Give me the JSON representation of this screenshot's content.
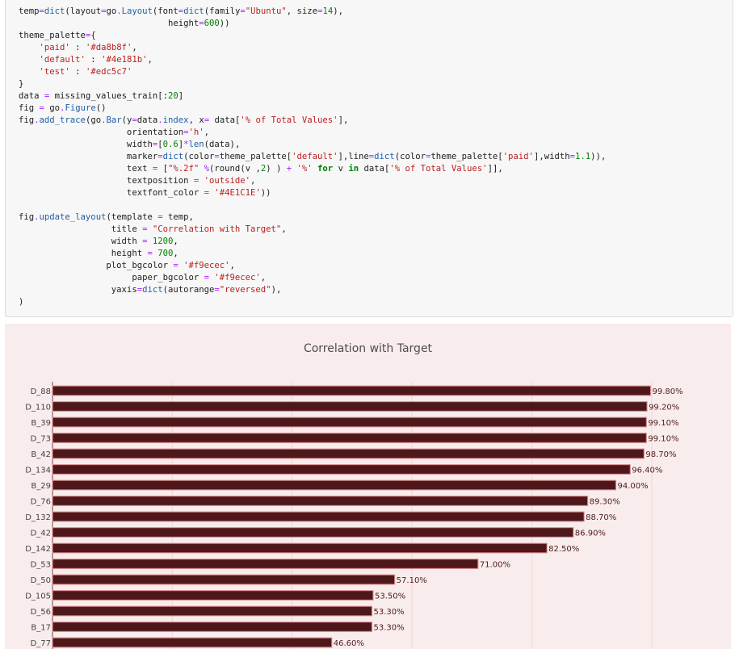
{
  "code_lines": [
    [
      [
        "t",
        "temp"
      ],
      [
        "o",
        "="
      ],
      [
        "f",
        "dict"
      ],
      [
        "t",
        "(layout"
      ],
      [
        "o",
        "="
      ],
      [
        "t",
        "go"
      ],
      [
        "o",
        "."
      ],
      [
        "f",
        "Layout"
      ],
      [
        "t",
        "(font"
      ],
      [
        "o",
        "="
      ],
      [
        "f",
        "dict"
      ],
      [
        "t",
        "(family"
      ],
      [
        "o",
        "="
      ],
      [
        "s",
        "\"Ubuntu\""
      ],
      [
        "t",
        ", size"
      ],
      [
        "o",
        "="
      ],
      [
        "n",
        "14"
      ],
      [
        "t",
        "),"
      ]
    ],
    [
      [
        "t",
        "                             height"
      ],
      [
        "o",
        "="
      ],
      [
        "n",
        "600"
      ],
      [
        "t",
        "))"
      ]
    ],
    [
      [
        "t",
        "theme_palette"
      ],
      [
        "o",
        "="
      ],
      [
        "t",
        "{"
      ]
    ],
    [
      [
        "t",
        "    "
      ],
      [
        "s",
        "'paid'"
      ],
      [
        "t",
        " : "
      ],
      [
        "s",
        "'#da8b8f'"
      ],
      [
        "t",
        ","
      ]
    ],
    [
      [
        "t",
        "    "
      ],
      [
        "s",
        "'default'"
      ],
      [
        "t",
        " : "
      ],
      [
        "s",
        "'#4e181b'"
      ],
      [
        "t",
        ","
      ]
    ],
    [
      [
        "t",
        "    "
      ],
      [
        "s",
        "'test'"
      ],
      [
        "t",
        " : "
      ],
      [
        "s",
        "'#edc5c7'"
      ]
    ],
    [
      [
        "t",
        "}"
      ]
    ],
    [
      [
        "t",
        "data "
      ],
      [
        "o",
        "="
      ],
      [
        "t",
        " missing_values_train[:"
      ],
      [
        "n",
        "20"
      ],
      [
        "t",
        "]"
      ]
    ],
    [
      [
        "t",
        "fig "
      ],
      [
        "o",
        "="
      ],
      [
        "t",
        " go"
      ],
      [
        "o",
        "."
      ],
      [
        "f",
        "Figure"
      ],
      [
        "t",
        "()"
      ]
    ],
    [
      [
        "t",
        "fig"
      ],
      [
        "o",
        "."
      ],
      [
        "f",
        "add_trace"
      ],
      [
        "t",
        "(go"
      ],
      [
        "o",
        "."
      ],
      [
        "f",
        "Bar"
      ],
      [
        "t",
        "(y"
      ],
      [
        "o",
        "="
      ],
      [
        "t",
        "data"
      ],
      [
        "o",
        "."
      ],
      [
        "f",
        "index"
      ],
      [
        "t",
        ", x"
      ],
      [
        "o",
        "="
      ],
      [
        "t",
        " data["
      ],
      [
        "s",
        "'% of Total Values'"
      ],
      [
        "t",
        "],"
      ]
    ],
    [
      [
        "t",
        "                     orientation"
      ],
      [
        "o",
        "="
      ],
      [
        "s",
        "'h'"
      ],
      [
        "t",
        ","
      ]
    ],
    [
      [
        "t",
        "                     width"
      ],
      [
        "o",
        "="
      ],
      [
        "t",
        "["
      ],
      [
        "n",
        "0.6"
      ],
      [
        "t",
        "]"
      ],
      [
        "o",
        "*"
      ],
      [
        "f",
        "len"
      ],
      [
        "t",
        "(data),"
      ]
    ],
    [
      [
        "t",
        "                     marker"
      ],
      [
        "o",
        "="
      ],
      [
        "f",
        "dict"
      ],
      [
        "t",
        "(color"
      ],
      [
        "o",
        "="
      ],
      [
        "t",
        "theme_palette["
      ],
      [
        "s",
        "'default'"
      ],
      [
        "t",
        "],line"
      ],
      [
        "o",
        "="
      ],
      [
        "f",
        "dict"
      ],
      [
        "t",
        "(color"
      ],
      [
        "o",
        "="
      ],
      [
        "t",
        "theme_palette["
      ],
      [
        "s",
        "'paid'"
      ],
      [
        "t",
        "],width"
      ],
      [
        "o",
        "="
      ],
      [
        "n",
        "1.1"
      ],
      [
        "t",
        ")),"
      ]
    ],
    [
      [
        "t",
        "                     text "
      ],
      [
        "o",
        "="
      ],
      [
        "t",
        " ["
      ],
      [
        "s",
        "\"%.2f\""
      ],
      [
        "t",
        " "
      ],
      [
        "o",
        "%"
      ],
      [
        "t",
        "(round(v ,"
      ],
      [
        "n",
        "2"
      ],
      [
        "t",
        ") ) "
      ],
      [
        "o",
        "+"
      ],
      [
        "t",
        " "
      ],
      [
        "s",
        "'%'"
      ],
      [
        "t",
        " "
      ],
      [
        "k",
        "for"
      ],
      [
        "t",
        " v "
      ],
      [
        "k",
        "in"
      ],
      [
        "t",
        " data["
      ],
      [
        "s",
        "'% of Total Values'"
      ],
      [
        "t",
        "]],"
      ]
    ],
    [
      [
        "t",
        "                     textposition "
      ],
      [
        "o",
        "="
      ],
      [
        "t",
        " "
      ],
      [
        "s",
        "'outside'"
      ],
      [
        "t",
        ","
      ]
    ],
    [
      [
        "t",
        "                     textfont_color "
      ],
      [
        "o",
        "="
      ],
      [
        "t",
        " "
      ],
      [
        "s",
        "'#4E1C1E'"
      ],
      [
        "t",
        "))"
      ]
    ],
    [
      [
        "t",
        ""
      ]
    ],
    [
      [
        "t",
        "fig"
      ],
      [
        "o",
        "."
      ],
      [
        "f",
        "update_layout"
      ],
      [
        "t",
        "(template "
      ],
      [
        "o",
        "="
      ],
      [
        "t",
        " temp,"
      ]
    ],
    [
      [
        "t",
        "                  title "
      ],
      [
        "o",
        "="
      ],
      [
        "t",
        " "
      ],
      [
        "s",
        "\"Correlation with Target\""
      ],
      [
        "t",
        ","
      ]
    ],
    [
      [
        "t",
        "                  width "
      ],
      [
        "o",
        "="
      ],
      [
        "t",
        " "
      ],
      [
        "n",
        "1200"
      ],
      [
        "t",
        ","
      ]
    ],
    [
      [
        "t",
        "                  height "
      ],
      [
        "o",
        "="
      ],
      [
        "t",
        " "
      ],
      [
        "n",
        "700"
      ],
      [
        "t",
        ","
      ]
    ],
    [
      [
        "t",
        "                 plot_bgcolor "
      ],
      [
        "o",
        "="
      ],
      [
        "t",
        " "
      ],
      [
        "s",
        "'#f9ecec'"
      ],
      [
        "t",
        ","
      ]
    ],
    [
      [
        "t",
        "                      paper_bgcolor "
      ],
      [
        "o",
        "="
      ],
      [
        "t",
        " "
      ],
      [
        "s",
        "'#f9ecec'"
      ],
      [
        "t",
        ","
      ]
    ],
    [
      [
        "t",
        "                  yaxis"
      ],
      [
        "o",
        "="
      ],
      [
        "f",
        "dict"
      ],
      [
        "t",
        "(autorange"
      ],
      [
        "o",
        "="
      ],
      [
        "s",
        "\"reversed\""
      ],
      [
        "t",
        "),"
      ]
    ],
    [
      [
        "t",
        ")"
      ]
    ]
  ],
  "colors": {
    "bar_fill": "#4e181b",
    "bar_line": "#da8b8f",
    "label_color": "#4E1C1E",
    "plot_bg": "#f9ecec"
  },
  "chart_data": {
    "type": "bar",
    "orientation": "horizontal",
    "title": "Correlation with Target",
    "categories": [
      "D_88",
      "D_110",
      "B_39",
      "D_73",
      "B_42",
      "D_134",
      "B_29",
      "D_76",
      "D_132",
      "D_42",
      "D_142",
      "D_53",
      "D_50",
      "D_105",
      "D_56",
      "B_17",
      "D_77"
    ],
    "values": [
      99.8,
      99.2,
      99.1,
      99.1,
      98.7,
      96.4,
      94.0,
      89.3,
      88.7,
      86.9,
      82.5,
      71.0,
      57.1,
      53.5,
      53.3,
      53.3,
      46.6
    ],
    "text_labels": [
      "99.80%",
      "99.20%",
      "99.10%",
      "99.10%",
      "98.70%",
      "96.40%",
      "94.00%",
      "89.30%",
      "88.70%",
      "86.90%",
      "82.50%",
      "71.00%",
      "57.10%",
      "53.50%",
      "53.30%",
      "53.30%",
      "46.60%"
    ],
    "xlim": [
      0,
      100
    ],
    "yaxis_reversed": true,
    "grid": true
  }
}
